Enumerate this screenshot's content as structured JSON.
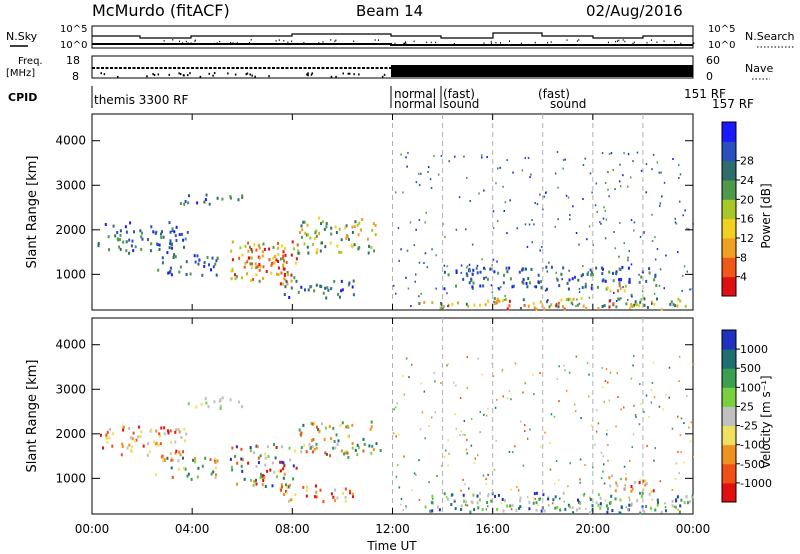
{
  "header": {
    "station": "McMurdo (fitACF)",
    "beam": "Beam 14",
    "date": "02/Aug/2016"
  },
  "panels": {
    "nsky_label": "N.Sky",
    "nsky_ticks": [
      "10^5",
      "10^0"
    ],
    "nsearch_label": "N.Search",
    "nsearch_ticks": [
      "10^5",
      "10^0"
    ],
    "freq_label": "Freq.",
    "freq_unit": "[MHz]",
    "freq_ticks": [
      "18",
      "8"
    ],
    "nave_label": "Nave",
    "nave_ticks": [
      "60",
      "0"
    ],
    "cpid_label": "CPID",
    "cpid_segments": [
      "themis 3300 RF",
      "normal",
      "normal",
      "(fast)",
      "(fast)",
      "sound",
      "sound",
      "151 RF",
      "157 RF"
    ]
  },
  "chart_data": [
    {
      "type": "heatmap",
      "name": "power",
      "ylabel": "Slant Range [km]",
      "xlabel": "",
      "x_ticks": [
        "00:00",
        "04:00",
        "08:00",
        "12:00",
        "16:00",
        "20:00",
        "00:00"
      ],
      "y_ticks": [
        1000,
        2000,
        3000,
        4000
      ],
      "ylim": [
        200,
        4600
      ],
      "xlim_hours": [
        0,
        24
      ],
      "colorbar": {
        "label": "Power [dB]",
        "ticks": [
          "4",
          "8",
          "12",
          "16",
          "20",
          "24",
          "28"
        ],
        "colors": [
          "#1a1aff",
          "#2a4fbf",
          "#2e6e6a",
          "#4f9a4a",
          "#a8c828",
          "#f0d020",
          "#f0a020",
          "#f05818",
          "#e01010"
        ]
      },
      "regions": [
        {
          "t0": 0.2,
          "t1": 3.8,
          "r0": 1500,
          "r1": 2200,
          "level": "low"
        },
        {
          "t0": 2.5,
          "t1": 5.0,
          "r0": 1000,
          "r1": 1500,
          "level": "low"
        },
        {
          "t0": 3.5,
          "t1": 6.0,
          "r0": 2600,
          "r1": 2850,
          "level": "low"
        },
        {
          "t0": 5.5,
          "t1": 8.2,
          "r0": 800,
          "r1": 1800,
          "level": "high"
        },
        {
          "t0": 6.0,
          "t1": 7.8,
          "r0": 1000,
          "r1": 1600,
          "level": "peak"
        },
        {
          "t0": 8.2,
          "t1": 11.5,
          "r0": 1500,
          "r1": 2300,
          "level": "mid"
        },
        {
          "t0": 7.5,
          "t1": 10.5,
          "r0": 500,
          "r1": 900,
          "level": "low"
        },
        {
          "t0": 13.0,
          "t1": 24.0,
          "r0": 250,
          "r1": 500,
          "level": "mid"
        },
        {
          "t0": 16.0,
          "t1": 19.0,
          "r0": 250,
          "r1": 450,
          "level": "peak"
        },
        {
          "t0": 14.0,
          "t1": 22.5,
          "r0": 700,
          "r1": 1200,
          "level": "low"
        },
        {
          "t0": 20.5,
          "t1": 21.7,
          "r0": 300,
          "r1": 800,
          "level": "high"
        }
      ]
    },
    {
      "type": "heatmap",
      "name": "velocity",
      "ylabel": "Slant Range [km]",
      "xlabel": "Time UT",
      "x_ticks": [
        "00:00",
        "04:00",
        "08:00",
        "12:00",
        "16:00",
        "20:00",
        "00:00"
      ],
      "y_ticks": [
        1000,
        2000,
        3000,
        4000
      ],
      "ylim": [
        200,
        4600
      ],
      "xlim_hours": [
        0,
        24
      ],
      "colorbar": {
        "label": "Velocity [m s⁻¹]",
        "ticks": [
          "1000",
          "500",
          "100",
          "25",
          "-25",
          "-100",
          "-500",
          "-1000"
        ],
        "colors": [
          "#2030c0",
          "#1e7070",
          "#3aa050",
          "#78d040",
          "#c0c0c0",
          "#f0e060",
          "#f09020",
          "#f05018",
          "#e01010"
        ]
      },
      "regions": [
        {
          "t0": 0.2,
          "t1": 3.8,
          "r0": 1500,
          "r1": 2200,
          "level": "neg"
        },
        {
          "t0": 2.5,
          "t1": 5.0,
          "r0": 1000,
          "r1": 1500,
          "level": "mix"
        },
        {
          "t0": 3.5,
          "t1": 6.0,
          "r0": 2600,
          "r1": 2850,
          "level": "zero"
        },
        {
          "t0": 5.5,
          "t1": 8.2,
          "r0": 800,
          "r1": 1800,
          "level": "mixstrong"
        },
        {
          "t0": 8.2,
          "t1": 11.5,
          "r0": 1500,
          "r1": 2300,
          "level": "mix"
        },
        {
          "t0": 7.5,
          "t1": 10.5,
          "r0": 500,
          "r1": 900,
          "level": "neg"
        },
        {
          "t0": 13.0,
          "t1": 24.0,
          "r0": 250,
          "r1": 700,
          "level": "pos"
        },
        {
          "t0": 20.5,
          "t1": 22.5,
          "r0": 700,
          "r1": 1100,
          "level": "neg"
        }
      ]
    }
  ]
}
